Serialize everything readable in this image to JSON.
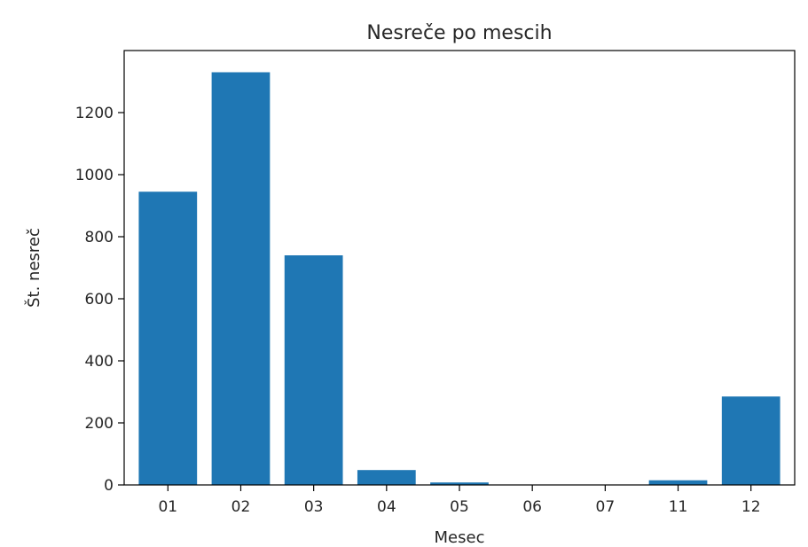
{
  "chart_data": {
    "type": "bar",
    "title": "Nesreče po mescih",
    "xlabel": "Mesec",
    "ylabel": "Št. nesreč",
    "categories": [
      "01",
      "02",
      "03",
      "04",
      "05",
      "06",
      "07",
      "11",
      "12"
    ],
    "values": [
      945,
      1330,
      740,
      48,
      8,
      0,
      0,
      15,
      285
    ],
    "ylim": [
      0,
      1400
    ],
    "yticks": [
      0,
      200,
      400,
      600,
      800,
      1000,
      1200
    ],
    "bar_color": "#1f77b4",
    "grid": false,
    "legend": "none"
  }
}
